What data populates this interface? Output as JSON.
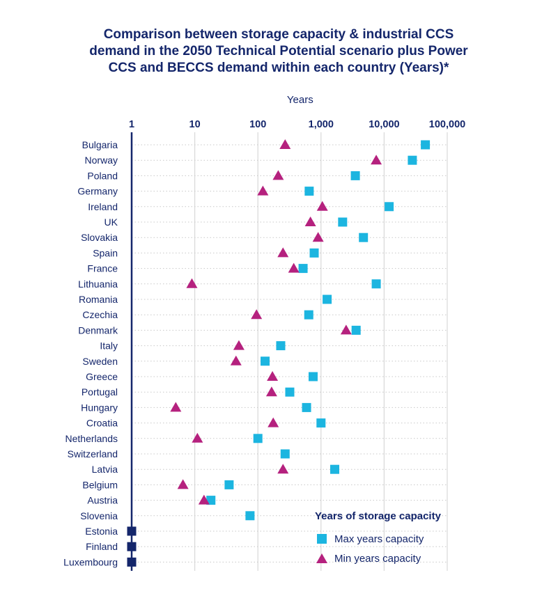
{
  "title_lines": [
    "Comparison between storage capacity & industrial CCS",
    "demand in the 2050 Technical Potential scenario plus Power",
    "CCS and BECCS demand within each country (Years)*"
  ],
  "legend": {
    "title": "Years of storage capacity",
    "max_label": "Max years capacity",
    "min_label": "Min years capacity"
  },
  "colors": {
    "max": "#1cb5e0",
    "min": "#b5217e",
    "zero": "#14266b",
    "axis": "#14266b",
    "grid": "#d8d8d8"
  },
  "chart_data": {
    "type": "scatter",
    "title": "Comparison between storage capacity & industrial CCS demand in the 2050 Technical Potential scenario plus Power CCS and BECCS demand within each country (Years)*",
    "xlabel": "Years",
    "xscale": "log",
    "xlim": [
      1,
      100000
    ],
    "xticks": [
      1,
      10,
      100,
      1000,
      10000,
      100000
    ],
    "xtick_labels": [
      "1",
      "10",
      "100",
      "1,000",
      "10,000",
      "100,000"
    ],
    "grid": "vertical",
    "legend_position": "bottom-right",
    "categories": [
      "Bulgaria",
      "Norway",
      "Poland",
      "Germany",
      "Ireland",
      "UK",
      "Slovakia",
      "Spain",
      "France",
      "Lithuania",
      "Romania",
      "Czechia",
      "Denmark",
      "Italy",
      "Sweden",
      "Greece",
      "Portugal",
      "Hungary",
      "Croatia",
      "Netherlands",
      "Switzerland",
      "Latvia",
      "Belgium",
      "Austria",
      "Slovenia",
      "Estonia",
      "Finland",
      "Luxembourg"
    ],
    "series": [
      {
        "name": "Max years capacity",
        "marker": "square",
        "values": [
          45000,
          28000,
          3500,
          650,
          12000,
          2200,
          4700,
          780,
          520,
          7500,
          1250,
          640,
          3600,
          230,
          130,
          750,
          320,
          590,
          1000,
          100,
          270,
          1650,
          35,
          18,
          75,
          1,
          1,
          1
        ]
      },
      {
        "name": "Min years capacity",
        "marker": "triangle",
        "values": [
          270,
          7500,
          210,
          120,
          1050,
          680,
          900,
          250,
          370,
          9,
          null,
          95,
          2500,
          50,
          45,
          170,
          165,
          5,
          175,
          11,
          null,
          250,
          6.5,
          14,
          null,
          null,
          null,
          null
        ]
      }
    ],
    "zero_capacity": [
      "Estonia",
      "Finland",
      "Luxembourg"
    ]
  }
}
